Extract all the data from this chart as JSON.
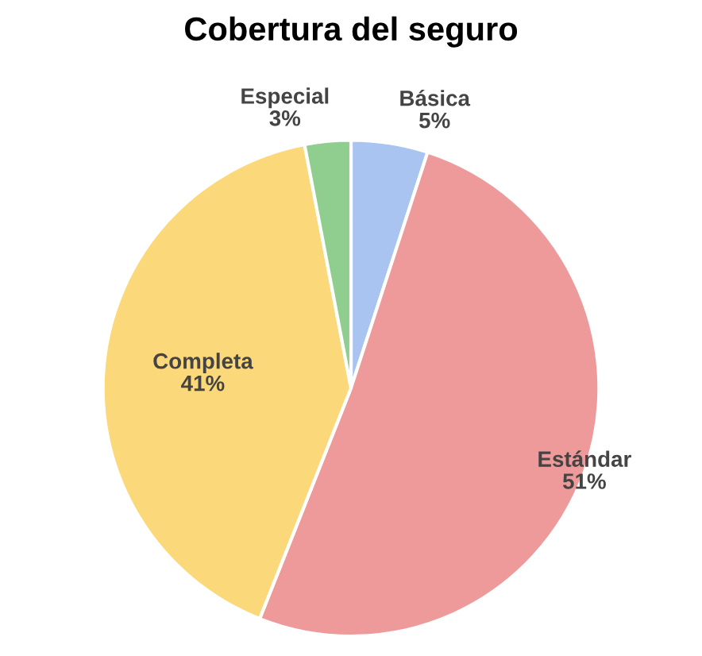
{
  "chart_data": {
    "type": "pie",
    "title": "Cobertura del seguro",
    "categories": [
      "Básica",
      "Estándar",
      "Completa",
      "Especial"
    ],
    "values": [
      5,
      51,
      41,
      3
    ],
    "value_labels": [
      "5%",
      "51%",
      "41%",
      "3%"
    ],
    "colors": [
      "#a9c4f0",
      "#ee9a9a",
      "#fbd97a",
      "#8fce8f"
    ]
  }
}
